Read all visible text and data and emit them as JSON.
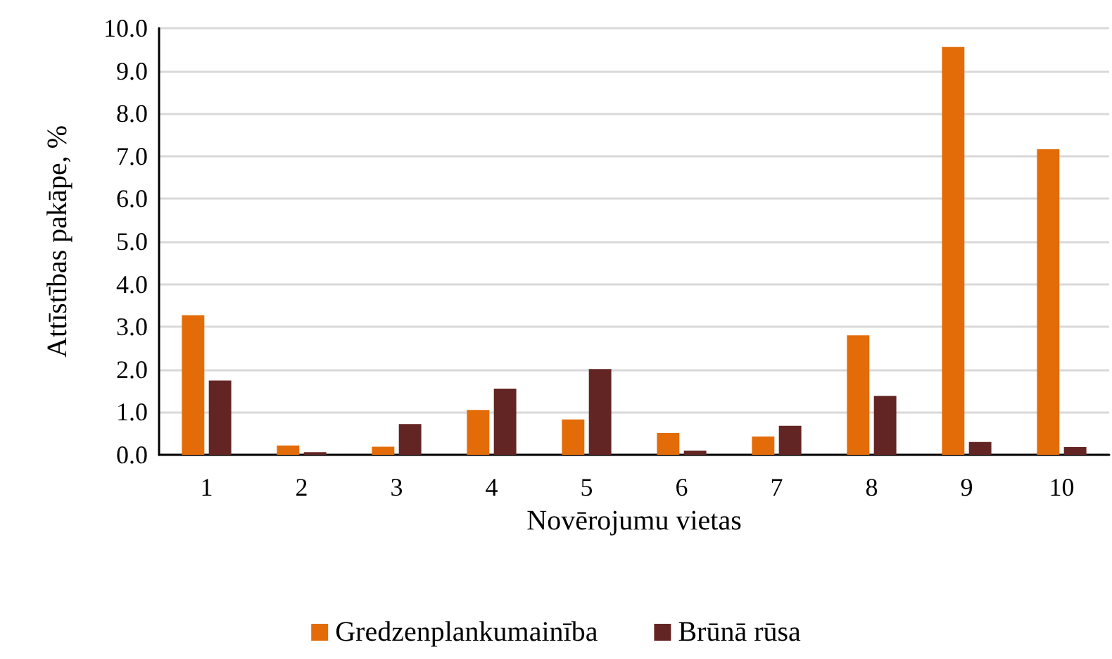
{
  "chart_data": {
    "type": "bar",
    "xlabel": "Novērojumu vietas",
    "ylabel": "Attīstības pakāpe, %",
    "categories": [
      "1",
      "2",
      "3",
      "4",
      "5",
      "6",
      "7",
      "8",
      "9",
      "10"
    ],
    "series": [
      {
        "name": "Gredzenplankumainība",
        "color": "#e36c09",
        "values": [
          3.27,
          0.22,
          0.19,
          1.05,
          0.83,
          0.51,
          0.43,
          2.8,
          9.56,
          7.16
        ]
      },
      {
        "name": "Brūnā rūsa",
        "color": "#632523",
        "values": [
          1.74,
          0.06,
          0.72,
          1.55,
          2.01,
          0.1,
          0.68,
          1.38,
          0.3,
          0.18
        ]
      }
    ],
    "ylim": [
      0,
      10
    ],
    "yticks": [
      {
        "value": 0,
        "label": "0.0"
      },
      {
        "value": 1,
        "label": "1.0"
      },
      {
        "value": 2,
        "label": "2.0"
      },
      {
        "value": 3,
        "label": "3.0"
      },
      {
        "value": 4,
        "label": "4.0"
      },
      {
        "value": 5,
        "label": "5.0"
      },
      {
        "value": 6,
        "label": "6.0"
      },
      {
        "value": 7,
        "label": "7.0"
      },
      {
        "value": 8,
        "label": "8.0"
      },
      {
        "value": 9,
        "label": "9.0"
      },
      {
        "value": 10,
        "label": "10.0"
      }
    ],
    "grid": "y",
    "legend": "bottom"
  }
}
